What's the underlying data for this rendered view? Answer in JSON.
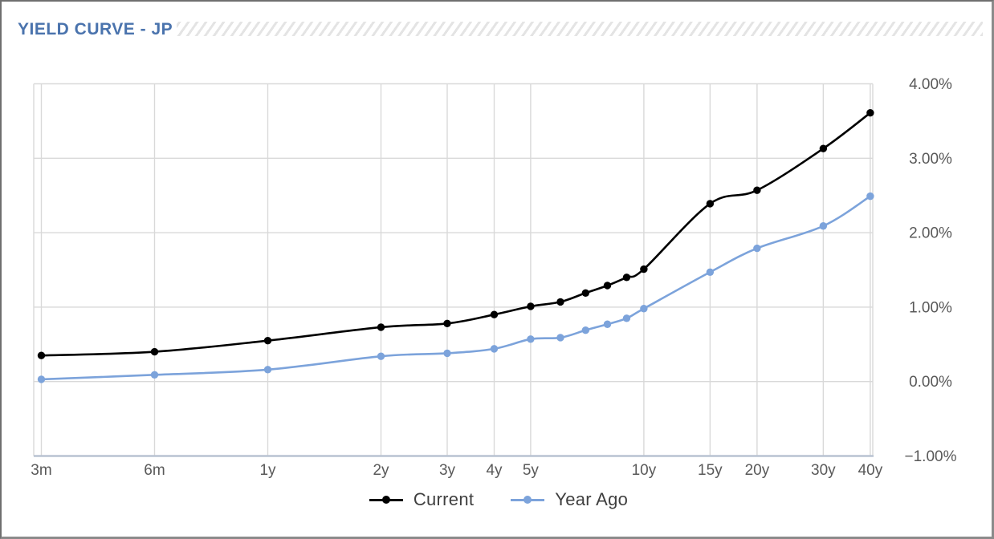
{
  "header": {
    "title": "YIELD CURVE - JP"
  },
  "colors": {
    "title": "#4a73ad",
    "current_series": "#000000",
    "year_ago_series": "#7ca3db",
    "gridline": "#d9d9d9",
    "axis_line": "#b9c3d2",
    "tick_text": "#595959",
    "legend_text": "#3f3f3f"
  },
  "chart_data": {
    "type": "line",
    "title": "YIELD CURVE - JP",
    "x_scale": "log",
    "grid": true,
    "legend_position": "bottom",
    "categories": [
      "3m",
      "6m",
      "1y",
      "2y",
      "3y",
      "4y",
      "5y",
      "6y",
      "7y",
      "8y",
      "9y",
      "10y",
      "15y",
      "20y",
      "30y",
      "40y"
    ],
    "maturity_years": [
      0.25,
      0.5,
      1,
      2,
      3,
      4,
      5,
      6,
      7,
      8,
      9,
      10,
      15,
      20,
      30,
      40
    ],
    "x_tick_labels": [
      "3m",
      "6m",
      "1y",
      "2y",
      "3y",
      "4y",
      "5y",
      "10y",
      "15y",
      "20y",
      "30y",
      "40y"
    ],
    "x_tick_years": [
      0.25,
      0.5,
      1,
      2,
      3,
      4,
      5,
      10,
      15,
      20,
      30,
      40
    ],
    "y_tick_labels": [
      "4.00%",
      "3.00%",
      "2.00%",
      "1.00%",
      "0.00%",
      "−1.00%"
    ],
    "y_tick_values": [
      4,
      3,
      2,
      1,
      0,
      -1
    ],
    "ylim": [
      -1,
      4
    ],
    "y_unit": "%",
    "series": [
      {
        "name": "Current",
        "color": "#000000",
        "values": [
          0.35,
          0.4,
          0.55,
          0.73,
          0.78,
          0.9,
          1.01,
          1.07,
          1.19,
          1.29,
          1.4,
          1.51,
          2.39,
          2.57,
          3.13,
          3.61
        ]
      },
      {
        "name": "Year Ago",
        "color": "#7ca3db",
        "values": [
          0.03,
          0.09,
          0.16,
          0.34,
          0.38,
          0.44,
          0.57,
          0.59,
          0.69,
          0.77,
          0.85,
          0.98,
          1.47,
          1.79,
          2.09,
          2.49
        ]
      }
    ]
  },
  "legend": {
    "items": [
      {
        "label": "Current"
      },
      {
        "label": "Year Ago"
      }
    ]
  }
}
